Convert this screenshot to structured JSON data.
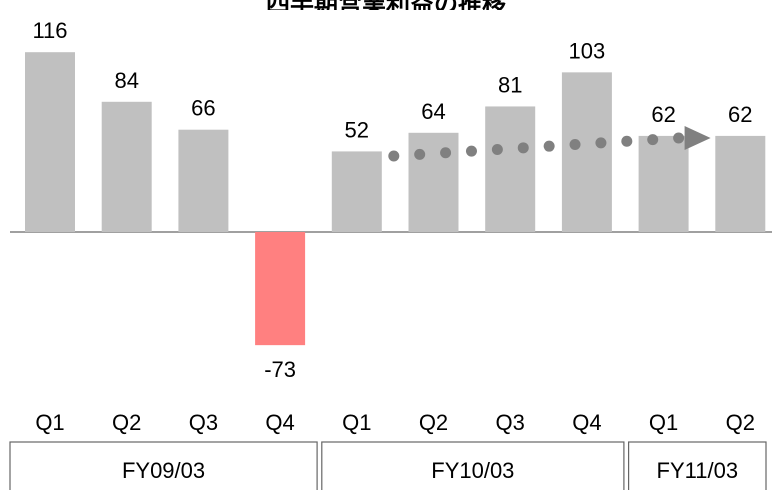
{
  "chart_data": {
    "type": "bar",
    "title": "四半期営業利益の推移",
    "categories": [
      "Q1",
      "Q2",
      "Q3",
      "Q4",
      "Q1",
      "Q2",
      "Q3",
      "Q4",
      "Q1",
      "Q2"
    ],
    "values": [
      116,
      84,
      66,
      -73,
      52,
      64,
      81,
      103,
      62,
      62
    ],
    "data_labels": [
      "116",
      "84",
      "66",
      "-73",
      "52",
      "64",
      "81",
      "103",
      "62",
      "62"
    ],
    "groups": [
      {
        "label": "FY09/03",
        "count": 4
      },
      {
        "label": "FY10/03",
        "count": 4
      },
      {
        "label": "FY11/03",
        "count": 2
      }
    ],
    "colors": {
      "positive": "#c0c0c0",
      "negative": "#ff8080",
      "trend": "#808080",
      "axis": "#808080"
    },
    "trend_arrow": {
      "from_index": 4,
      "to_index": 8,
      "style": "dotted",
      "color": "#808080"
    }
  }
}
